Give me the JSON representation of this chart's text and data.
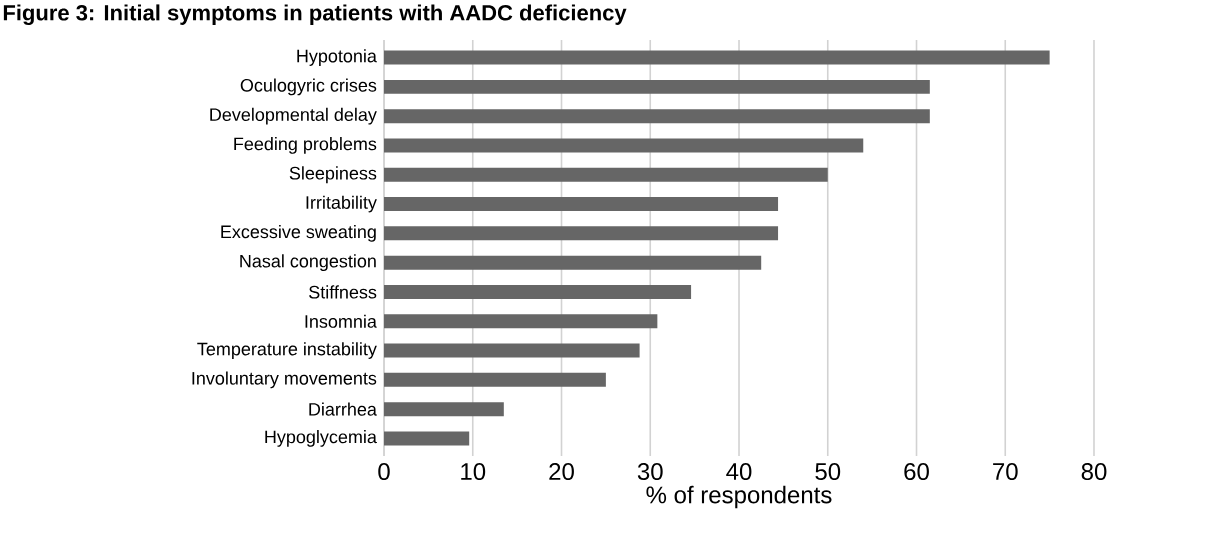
{
  "chart_data": {
    "type": "bar",
    "orientation": "horizontal",
    "title": "Figure 3: Initial symptoms in patients with AADC deficiency",
    "xlabel": "% of respondents",
    "categories": [
      "Hypotonia",
      "Oculogyric crises",
      "Developmental delay",
      "Feeding problems",
      "Sleepiness",
      "Irritability",
      "Excessive sweating",
      "Nasal congestion",
      "Stiffness",
      "Insomnia",
      "Temperature instability",
      "Involuntary movements",
      "Diarrhea",
      "Hypoglycemia"
    ],
    "values": [
      75,
      61.5,
      61.5,
      54,
      50,
      44.4,
      44.4,
      42.5,
      34.6,
      30.8,
      28.8,
      25,
      13.5,
      9.6
    ],
    "color": "#666666",
    "xlim": [
      0,
      80
    ],
    "xticks": [
      0,
      10,
      20,
      30,
      40,
      50,
      60,
      70,
      80
    ],
    "grid": "x"
  }
}
